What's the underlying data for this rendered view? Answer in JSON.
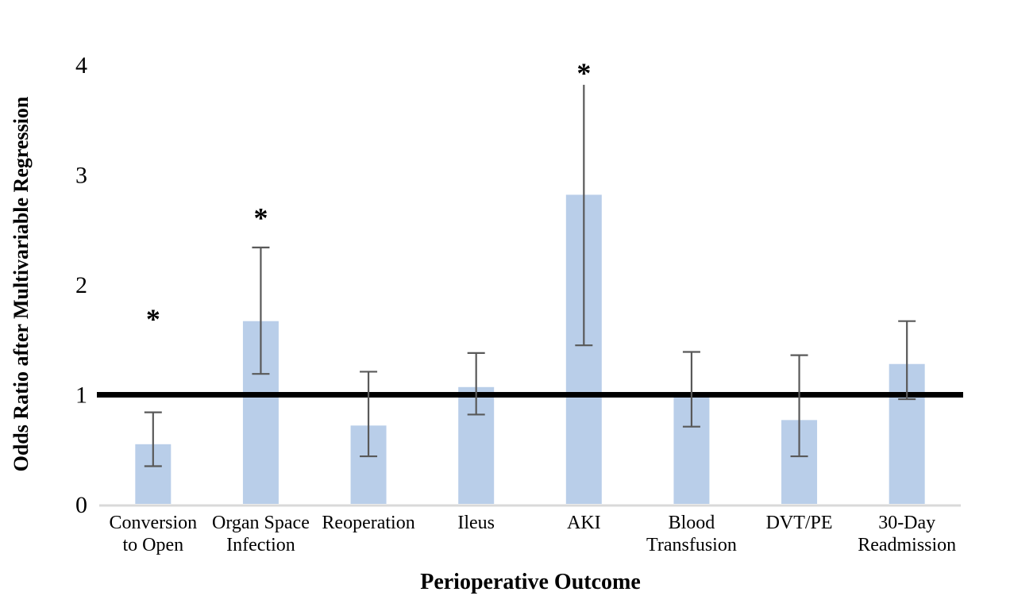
{
  "figure": {
    "description": "Bar chart of odds ratios with 95% confidence-interval error bars; asterisks mark statistically significant outcomes; bold horizontal line at odds ratio = 1",
    "background_color": "#ffffff"
  },
  "chart_data": {
    "type": "bar",
    "title": "",
    "xlabel": "Perioperative Outcome",
    "ylabel": "Odds Ratio after Multivariable Regression",
    "ylim": [
      0,
      4
    ],
    "yticks": [
      0,
      1,
      2,
      3,
      4
    ],
    "grid": false,
    "legend": false,
    "reference_line_y": 1,
    "categories": [
      "Conversion to Open",
      "Organ Space Infection",
      "Reoperation",
      "Ileus",
      "AKI",
      "Blood Transfusion",
      "DVT/PE",
      "30-Day Readmission"
    ],
    "category_label_lines": [
      [
        "Conversion",
        "to Open"
      ],
      [
        "Organ Space",
        "Infection"
      ],
      [
        "Reoperation"
      ],
      [
        "Ileus"
      ],
      [
        "AKI"
      ],
      [
        "Blood",
        "Transfusion"
      ],
      [
        "DVT/PE"
      ],
      [
        "30-Day",
        "Readmission"
      ]
    ],
    "series": [
      {
        "name": "Odds ratio after multivariable regression",
        "values": [
          0.55,
          1.67,
          0.72,
          1.07,
          2.82,
          0.99,
          0.77,
          1.28
        ],
        "ci_low": [
          0.35,
          1.19,
          0.44,
          0.82,
          1.45,
          0.71,
          0.44,
          0.96
        ],
        "ci_high": [
          0.84,
          2.34,
          1.21,
          1.38,
          3.82,
          1.39,
          1.36,
          1.67
        ],
        "significant": [
          true,
          true,
          false,
          false,
          true,
          false,
          false,
          false
        ]
      }
    ],
    "significance_marker": "*",
    "star_y_values": [
      1.71,
      2.63,
      null,
      null,
      3.95,
      null,
      null,
      null
    ],
    "error_cap_top": [
      true,
      true,
      true,
      true,
      false,
      true,
      true,
      true
    ],
    "error_cap_bottom": [
      true,
      true,
      true,
      true,
      true,
      true,
      true,
      true
    ],
    "colors": {
      "bar_fill": "#b9cee9",
      "error_bar": "#595959",
      "axis_line": "#d9d9d9",
      "reference_line": "#000000",
      "text": "#000000"
    }
  }
}
